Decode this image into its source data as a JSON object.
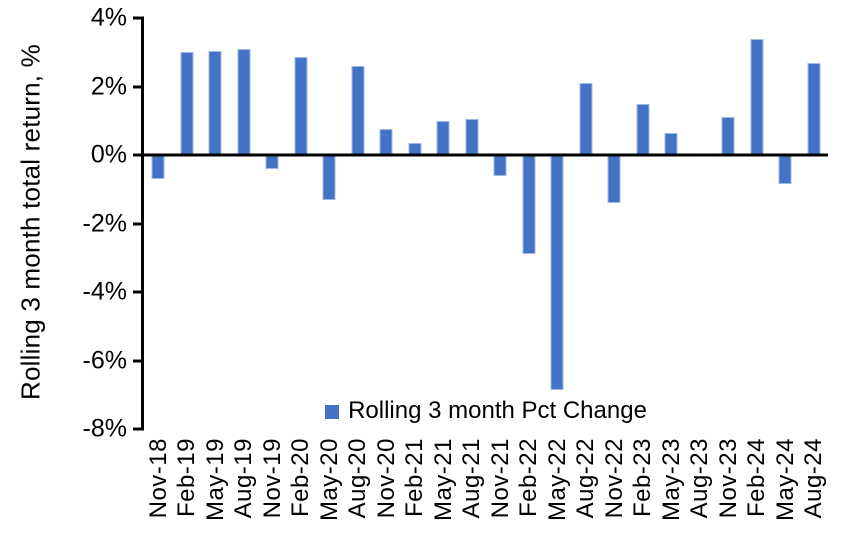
{
  "chart_data": {
    "type": "bar",
    "title": "",
    "xlabel": "",
    "ylabel": "Rolling 3 month total return, %",
    "ylim": [
      -8,
      4
    ],
    "ytick_step": 2,
    "ytick_suffix": "%",
    "grid": false,
    "legend_label": "Rolling 3 month Pct Change",
    "legend_position": "bottom-center-inside-plot",
    "bar_color": "#4472C4",
    "axis_color": "#000000",
    "categories": [
      "Nov-18",
      "Feb-19",
      "May-19",
      "Aug-19",
      "Nov-19",
      "Feb-20",
      "May-20",
      "Aug-20",
      "Nov-20",
      "Feb-21",
      "May-21",
      "Aug-21",
      "Nov-21",
      "Feb-22",
      "May-22",
      "Aug-22",
      "Nov-22",
      "Feb-23",
      "May-23",
      "Aug-23",
      "Nov-23",
      "Feb-24",
      "May-24",
      "Aug-24"
    ],
    "values": [
      -0.7,
      3.0,
      3.05,
      3.1,
      -0.4,
      2.85,
      -1.3,
      2.6,
      0.75,
      0.35,
      1.0,
      1.05,
      -0.6,
      -2.9,
      -6.85,
      2.1,
      -1.4,
      1.5,
      0.65,
      0.0,
      1.1,
      3.4,
      -0.85,
      2.7
    ]
  }
}
